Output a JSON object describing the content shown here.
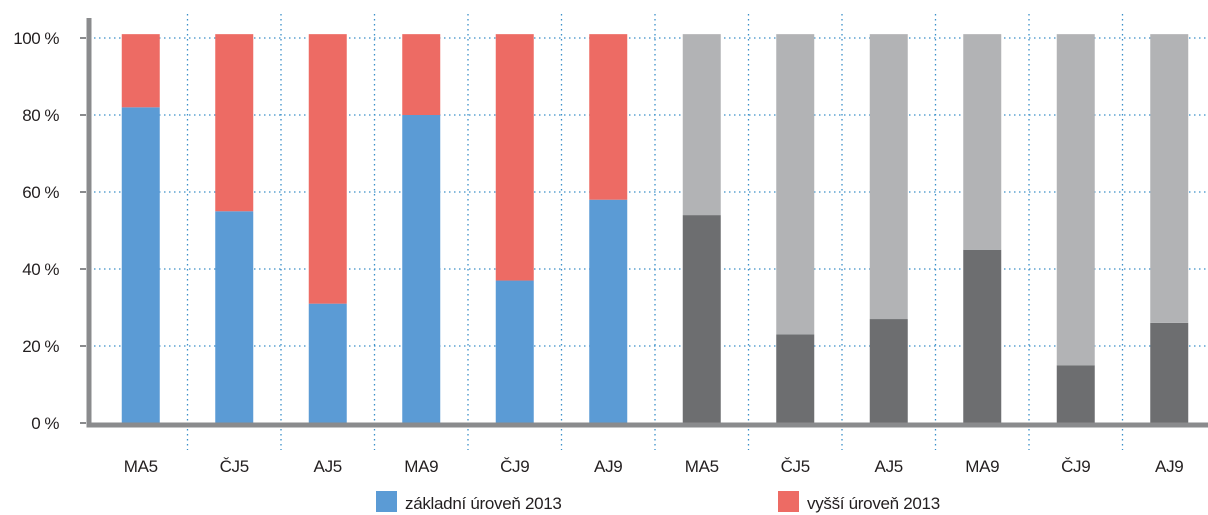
{
  "chart_data": {
    "type": "bar",
    "stacked": true,
    "normalized_percent": true,
    "categories": [
      "MA5",
      "ČJ5",
      "AJ5",
      "MA9",
      "ČJ9",
      "AJ9",
      "MA5",
      "ČJ5",
      "AJ5",
      "MA9",
      "ČJ9",
      "AJ9"
    ],
    "series": [
      {
        "name": "základní úroveň 2013",
        "values": [
          82,
          55,
          31,
          80,
          37,
          58,
          null,
          null,
          null,
          null,
          null,
          null
        ],
        "color": "#5b9bd5"
      },
      {
        "name": "vyšší úroveň 2013",
        "values": [
          19,
          46,
          70,
          21,
          64,
          43,
          null,
          null,
          null,
          null,
          null,
          null
        ],
        "color": "#ed6b64"
      },
      {
        "values": [
          null,
          null,
          null,
          null,
          null,
          null,
          54,
          23,
          27,
          45,
          15,
          26
        ],
        "color": "#6d6e70"
      },
      {
        "values": [
          null,
          null,
          null,
          null,
          null,
          null,
          47,
          78,
          74,
          56,
          86,
          75
        ],
        "color": "#b2b3b5"
      }
    ],
    "y_ticks": [
      "0 %",
      "20 %",
      "40 %",
      "60 %",
      "80 %",
      "100 %"
    ],
    "y_tick_values": [
      0,
      20,
      40,
      60,
      80,
      100
    ],
    "ylim": [
      0,
      105
    ],
    "grid": true,
    "legend_position": "bottom",
    "legend": [
      {
        "label": "základní úroveň 2013",
        "color": "#5b9bd5"
      },
      {
        "label": "vyšší úroveň 2013",
        "color": "#ed6b64"
      }
    ]
  }
}
